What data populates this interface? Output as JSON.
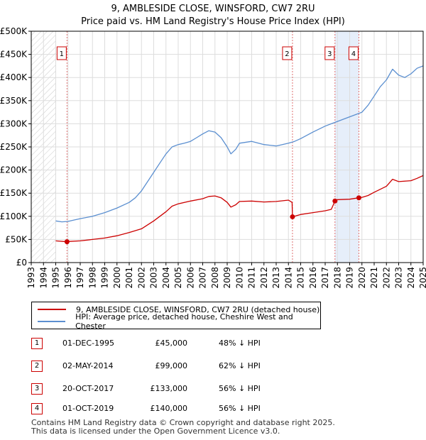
{
  "title": {
    "line1": "9, AMBLESIDE CLOSE, WINSFORD, CW7 2RU",
    "line2": "Price paid vs. HM Land Registry's House Price Index (HPI)"
  },
  "colors": {
    "price_line": "#cc0000",
    "hpi_line": "#5b8fd0",
    "sale_shade": "#e6eefa",
    "hatch": "#cccccc",
    "grid": "#dddddd"
  },
  "legend": {
    "price_label": "9, AMBLESIDE CLOSE, WINSFORD, CW7 2RU (detached house)",
    "hpi_label": "HPI: Average price, detached house, Cheshire West and Chester"
  },
  "sales": [
    {
      "num": "1",
      "date": "01-DEC-1995",
      "price": "£45,000",
      "hpi": "48% ↓ HPI"
    },
    {
      "num": "2",
      "date": "02-MAY-2014",
      "price": "£99,000",
      "hpi": "62% ↓ HPI"
    },
    {
      "num": "3",
      "date": "20-OCT-2017",
      "price": "£133,000",
      "hpi": "56% ↓ HPI"
    },
    {
      "num": "4",
      "date": "01-OCT-2019",
      "price": "£140,000",
      "hpi": "56% ↓ HPI"
    }
  ],
  "footer": {
    "line1": "Contains HM Land Registry data © Crown copyright and database right 2025.",
    "line2": "This data is licensed under the Open Government Licence v3.0."
  },
  "chart_data": {
    "type": "line",
    "title": "9, AMBLESIDE CLOSE, WINSFORD, CW7 2RU — Price paid vs. HM Land Registry's House Price Index (HPI)",
    "xlabel": "",
    "ylabel": "",
    "xlim": [
      1993,
      2025
    ],
    "ylim": [
      0,
      500000
    ],
    "x_ticks": [
      1993,
      1994,
      1995,
      1996,
      1997,
      1998,
      1999,
      2000,
      2001,
      2002,
      2003,
      2004,
      2005,
      2006,
      2007,
      2008,
      2009,
      2010,
      2011,
      2012,
      2013,
      2014,
      2015,
      2016,
      2017,
      2018,
      2019,
      2020,
      2021,
      2022,
      2023,
      2024,
      2025
    ],
    "y_ticks": [
      0,
      50000,
      100000,
      150000,
      200000,
      250000,
      300000,
      350000,
      400000,
      450000,
      500000
    ],
    "y_tick_labels": [
      "£0",
      "£50K",
      "£100K",
      "£150K",
      "£200K",
      "£250K",
      "£300K",
      "£350K",
      "£400K",
      "£450K",
      "£500K"
    ],
    "hatched_before": 1995.0,
    "sale_markers": [
      {
        "label": "1",
        "x": 1995.92,
        "y": 45000
      },
      {
        "label": "2",
        "x": 2014.33,
        "y": 99000
      },
      {
        "label": "3",
        "x": 2017.8,
        "y": 133000
      },
      {
        "label": "4",
        "x": 2019.75,
        "y": 140000
      }
    ],
    "shaded_spans": [
      [
        2017.8,
        2019.75
      ]
    ],
    "series": [
      {
        "name": "9, AMBLESIDE CLOSE, WINSFORD, CW7 2RU (detached house)",
        "x": [
          1995.0,
          1995.92,
          1996.0,
          1997.0,
          1998.0,
          1999.0,
          2000.0,
          2001.0,
          2002.0,
          2003.0,
          2004.0,
          2004.5,
          2005.0,
          2006.0,
          2007.0,
          2007.5,
          2008.0,
          2008.5,
          2009.0,
          2009.3,
          2009.7,
          2010.0,
          2011.0,
          2012.0,
          2013.0,
          2014.0,
          2014.3,
          2014.33,
          2015.0,
          2016.0,
          2017.0,
          2017.5,
          2017.8,
          2018.0,
          2019.0,
          2019.75,
          2020.0,
          2020.5,
          2021.0,
          2022.0,
          2022.5,
          2023.0,
          2024.0,
          2024.5,
          2025.0
        ],
        "y": [
          47000,
          45000,
          45500,
          47000,
          50000,
          53000,
          58000,
          65000,
          73000,
          90000,
          110000,
          122000,
          127000,
          133000,
          138000,
          143000,
          144000,
          140000,
          130000,
          120000,
          125000,
          132000,
          133000,
          131000,
          132000,
          135000,
          130000,
          99000,
          104000,
          108000,
          112000,
          115000,
          133000,
          136000,
          137000,
          140000,
          141000,
          145000,
          152000,
          165000,
          180000,
          175000,
          177000,
          182000,
          188000
        ]
      },
      {
        "name": "HPI: Average price, detached house, Cheshire West and Chester",
        "x": [
          1995.0,
          1995.5,
          1996.0,
          1996.5,
          1997.0,
          1998.0,
          1999.0,
          2000.0,
          2001.0,
          2001.5,
          2002.0,
          2002.5,
          2003.0,
          2003.5,
          2004.0,
          2004.5,
          2005.0,
          2005.5,
          2006.0,
          2006.5,
          2007.0,
          2007.5,
          2008.0,
          2008.5,
          2009.0,
          2009.3,
          2009.7,
          2010.0,
          2011.0,
          2012.0,
          2013.0,
          2014.0,
          2014.5,
          2015.0,
          2016.0,
          2017.0,
          2017.5,
          2018.0,
          2019.0,
          2020.0,
          2020.5,
          2021.0,
          2021.5,
          2022.0,
          2022.5,
          2023.0,
          2023.5,
          2024.0,
          2024.5,
          2025.0
        ],
        "y": [
          90000,
          88000,
          89000,
          92000,
          95000,
          100000,
          108000,
          118000,
          130000,
          140000,
          155000,
          175000,
          195000,
          215000,
          235000,
          250000,
          255000,
          258000,
          262000,
          270000,
          278000,
          285000,
          282000,
          270000,
          250000,
          235000,
          245000,
          258000,
          262000,
          255000,
          252000,
          258000,
          262000,
          268000,
          282000,
          295000,
          300000,
          305000,
          315000,
          325000,
          340000,
          360000,
          380000,
          395000,
          418000,
          405000,
          400000,
          408000,
          420000,
          425000
        ]
      }
    ]
  }
}
